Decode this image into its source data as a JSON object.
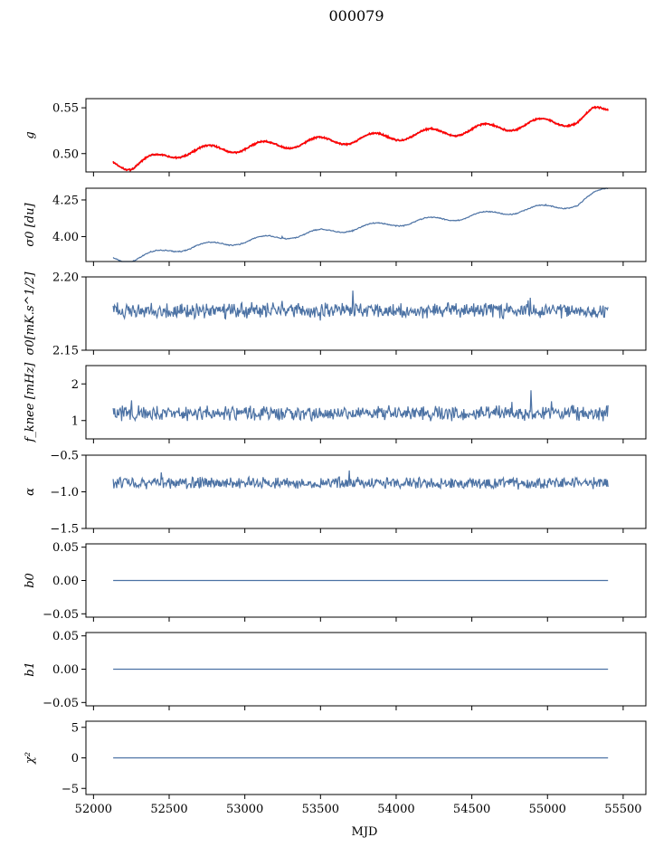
{
  "figure": {
    "title": "000079",
    "xlabel": "MJD"
  },
  "colors": {
    "series": "#4c72a4",
    "overlay": "#ff0000",
    "axes": "#000000"
  },
  "chart_data": {
    "type": "line",
    "xlim": [
      51950,
      55650
    ],
    "xticks": [
      52000,
      52500,
      53000,
      53500,
      54000,
      54500,
      55000,
      55500
    ],
    "xtick_labels": [
      "52000",
      "52500",
      "53000",
      "53500",
      "54000",
      "54500",
      "55000",
      "55500"
    ],
    "x_range": [
      52130,
      55400
    ],
    "panels": [
      {
        "ylabel": "g",
        "ylim": [
          0.48,
          0.56
        ],
        "yticks": [
          0.5,
          0.55
        ],
        "ytick_labels": [
          "0.50",
          "0.55"
        ],
        "has_overlay": true,
        "trend": [
          [
            52130,
            0.492
          ],
          [
            52250,
            0.486
          ],
          [
            52350,
            0.492
          ],
          [
            52600,
            0.502
          ],
          [
            53000,
            0.507
          ],
          [
            53500,
            0.513
          ],
          [
            54000,
            0.519
          ],
          [
            54500,
            0.526
          ],
          [
            55000,
            0.534
          ],
          [
            55200,
            0.536
          ],
          [
            55300,
            0.545
          ],
          [
            55400,
            0.547
          ]
        ],
        "amplitude": 0.005,
        "noise": 0.0004
      },
      {
        "ylabel": "σ0 [du]",
        "ylim": [
          3.83,
          4.33
        ],
        "yticks": [
          4.0,
          4.25
        ],
        "ytick_labels": [
          "4.00",
          "4.25"
        ],
        "trend": [
          [
            52130,
            3.86
          ],
          [
            52250,
            3.84
          ],
          [
            52500,
            3.91
          ],
          [
            53000,
            3.97
          ],
          [
            53500,
            4.03
          ],
          [
            54000,
            4.09
          ],
          [
            54500,
            4.14
          ],
          [
            55000,
            4.2
          ],
          [
            55200,
            4.22
          ],
          [
            55300,
            4.28
          ],
          [
            55400,
            4.33
          ]
        ],
        "amplitude": 0.02,
        "noise": 0.003
      },
      {
        "ylabel": "σ0[mK.s^1/2]",
        "ylim": [
          2.15,
          2.2
        ],
        "yticks": [
          2.15,
          2.2
        ],
        "ytick_labels": [
          "2.15",
          "2.20"
        ],
        "trend": [
          [
            52130,
            2.177
          ],
          [
            55400,
            2.177
          ]
        ],
        "amplitude": 0.0,
        "noise": 0.004
      },
      {
        "ylabel": "f_knee [mHz]",
        "ylim": [
          0.5,
          2.5
        ],
        "yticks": [
          1,
          2
        ],
        "ytick_labels": [
          "1",
          "2"
        ],
        "trend": [
          [
            52130,
            1.2
          ],
          [
            55400,
            1.2
          ]
        ],
        "amplitude": 0.0,
        "noise": 0.16
      },
      {
        "ylabel": "α",
        "ylim": [
          -1.5,
          -0.5
        ],
        "yticks": [
          -1.5,
          -1.0,
          -0.5
        ],
        "ytick_labels": [
          "−1.5",
          "−1.0",
          "−0.5"
        ],
        "trend": [
          [
            52130,
            -0.88
          ],
          [
            55400,
            -0.88
          ]
        ],
        "amplitude": 0.0,
        "noise": 0.06
      },
      {
        "ylabel": "b0",
        "ylim": [
          -0.055,
          0.055
        ],
        "yticks": [
          -0.05,
          0.0,
          0.05
        ],
        "ytick_labels": [
          "−0.05",
          "0.00",
          "0.05"
        ],
        "trend": [
          [
            52130,
            0.0
          ],
          [
            55400,
            0.0
          ]
        ],
        "amplitude": 0.0,
        "noise": 0.0
      },
      {
        "ylabel": "b1",
        "ylim": [
          -0.055,
          0.055
        ],
        "yticks": [
          -0.05,
          0.0,
          0.05
        ],
        "ytick_labels": [
          "−0.05",
          "0.00",
          "0.05"
        ],
        "trend": [
          [
            52130,
            0.0
          ],
          [
            55400,
            0.0
          ]
        ],
        "amplitude": 0.0,
        "noise": 0.0
      },
      {
        "ylabel": "χ²",
        "ylim": [
          -6,
          6
        ],
        "yticks": [
          -5,
          0,
          5
        ],
        "ytick_labels": [
          "−5",
          "0",
          "5"
        ],
        "trend": [
          [
            52130,
            0
          ],
          [
            55400,
            0
          ]
        ],
        "amplitude": 0.0,
        "noise": 0.0
      }
    ]
  }
}
